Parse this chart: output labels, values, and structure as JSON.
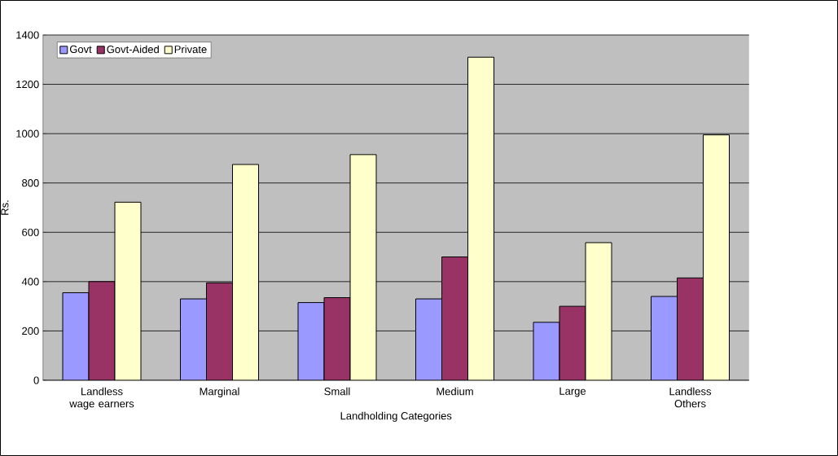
{
  "chart_data": {
    "type": "bar",
    "xlabel": "Landholding Categories",
    "ylabel": "Rs.",
    "categories": [
      "Landless wage earners",
      "Marginal",
      "Small",
      "Medium",
      "Large",
      "Landless Others"
    ],
    "series": [
      {
        "name": "Govt",
        "color": "#9999ff",
        "values": [
          355,
          330,
          315,
          330,
          235,
          340
        ]
      },
      {
        "name": "Govt-Aided",
        "color": "#993366",
        "values": [
          400,
          395,
          335,
          500,
          300,
          415
        ]
      },
      {
        "name": "Private",
        "color": "#ffffcc",
        "values": [
          722,
          875,
          915,
          1310,
          558,
          995
        ]
      }
    ],
    "ylim": [
      0,
      1400
    ],
    "yticks": [
      0,
      200,
      400,
      600,
      800,
      1000,
      1200,
      1400
    ],
    "grid": "y",
    "legend": "top left"
  }
}
